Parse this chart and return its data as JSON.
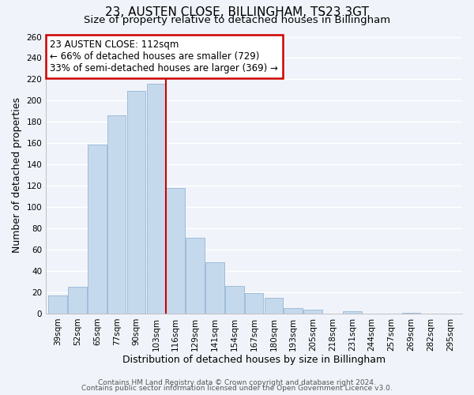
{
  "title": "23, AUSTEN CLOSE, BILLINGHAM, TS23 3GT",
  "subtitle": "Size of property relative to detached houses in Billingham",
  "xlabel": "Distribution of detached houses by size in Billingham",
  "ylabel": "Number of detached properties",
  "categories": [
    "39sqm",
    "52sqm",
    "65sqm",
    "77sqm",
    "90sqm",
    "103sqm",
    "116sqm",
    "129sqm",
    "141sqm",
    "154sqm",
    "167sqm",
    "180sqm",
    "193sqm",
    "205sqm",
    "218sqm",
    "231sqm",
    "244sqm",
    "257sqm",
    "269sqm",
    "282sqm",
    "295sqm"
  ],
  "values": [
    17,
    25,
    159,
    186,
    209,
    216,
    118,
    71,
    48,
    26,
    19,
    15,
    5,
    4,
    0,
    2,
    0,
    0,
    1,
    0,
    0
  ],
  "bar_color": "#c5d9ed",
  "bar_edge_color": "#a0bcd8",
  "vline_x_index": 6,
  "vline_color": "#cc0000",
  "ylim": [
    0,
    260
  ],
  "yticks": [
    0,
    20,
    40,
    60,
    80,
    100,
    120,
    140,
    160,
    180,
    200,
    220,
    240,
    260
  ],
  "annotation_title": "23 AUSTEN CLOSE: 112sqm",
  "annotation_line1": "← 66% of detached houses are smaller (729)",
  "annotation_line2": "33% of semi-detached houses are larger (369) →",
  "annotation_box_color": "#ffffff",
  "annotation_box_edge": "#cc0000",
  "footer_line1": "Contains HM Land Registry data © Crown copyright and database right 2024.",
  "footer_line2": "Contains public sector information licensed under the Open Government Licence v3.0.",
  "title_fontsize": 11,
  "subtitle_fontsize": 9.5,
  "xlabel_fontsize": 9,
  "ylabel_fontsize": 9,
  "tick_fontsize": 7.5,
  "footer_fontsize": 6.5,
  "annotation_fontsize": 8.5,
  "background_color": "#f0f4fa",
  "grid_color": "#ffffff",
  "grid_linewidth": 1.0
}
